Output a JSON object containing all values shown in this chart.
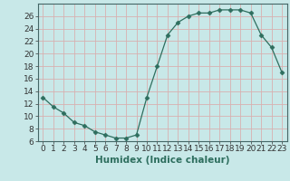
{
  "x": [
    0,
    1,
    2,
    3,
    4,
    5,
    6,
    7,
    8,
    9,
    10,
    11,
    12,
    13,
    14,
    15,
    16,
    17,
    18,
    19,
    20,
    21,
    22,
    23
  ],
  "y": [
    13,
    11.5,
    10.5,
    9,
    8.5,
    7.5,
    7,
    6.5,
    6.5,
    7,
    13,
    18,
    23,
    25,
    26,
    26.5,
    26.5,
    27,
    27,
    27,
    26.5,
    23,
    21,
    17
  ],
  "line_color": "#2e6e5e",
  "marker": "D",
  "marker_size": 2.5,
  "bg_color": "#c8e8e8",
  "grid_color": "#d8b0b0",
  "xlabel": "Humidex (Indice chaleur)",
  "ylim": [
    6,
    28
  ],
  "xlim": [
    -0.5,
    23.5
  ],
  "yticks": [
    6,
    8,
    10,
    12,
    14,
    16,
    18,
    20,
    22,
    24,
    26
  ],
  "xlabel_fontsize": 7.5,
  "tick_fontsize": 6.5
}
